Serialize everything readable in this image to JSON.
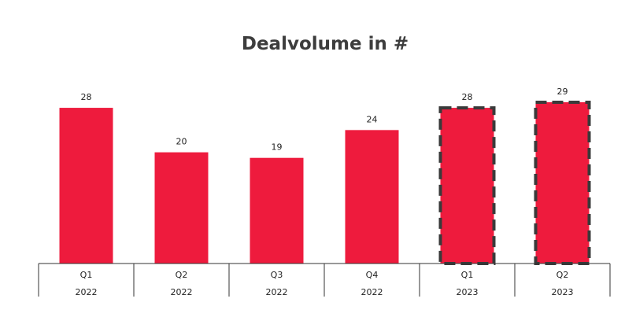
{
  "chart_data": {
    "type": "bar",
    "title": "Dealvolume in #",
    "categories": [
      "Q1",
      "Q2",
      "Q3",
      "Q4",
      "Q1",
      "Q2"
    ],
    "groups": [
      "2022",
      "2022",
      "2022",
      "2022",
      "2023",
      "2023"
    ],
    "values": [
      28,
      20,
      19,
      24,
      28,
      29
    ],
    "highlighted": [
      false,
      false,
      false,
      false,
      true,
      true
    ],
    "xlabel": "",
    "ylabel": "",
    "ylim": [
      0,
      29
    ],
    "grid": false,
    "legend": "none",
    "colors": {
      "bar": "#EE1B3D",
      "highlight_border": "#3a3a3a",
      "axis": "#333333",
      "title": "#3d3d3d",
      "text": "#222222"
    }
  }
}
